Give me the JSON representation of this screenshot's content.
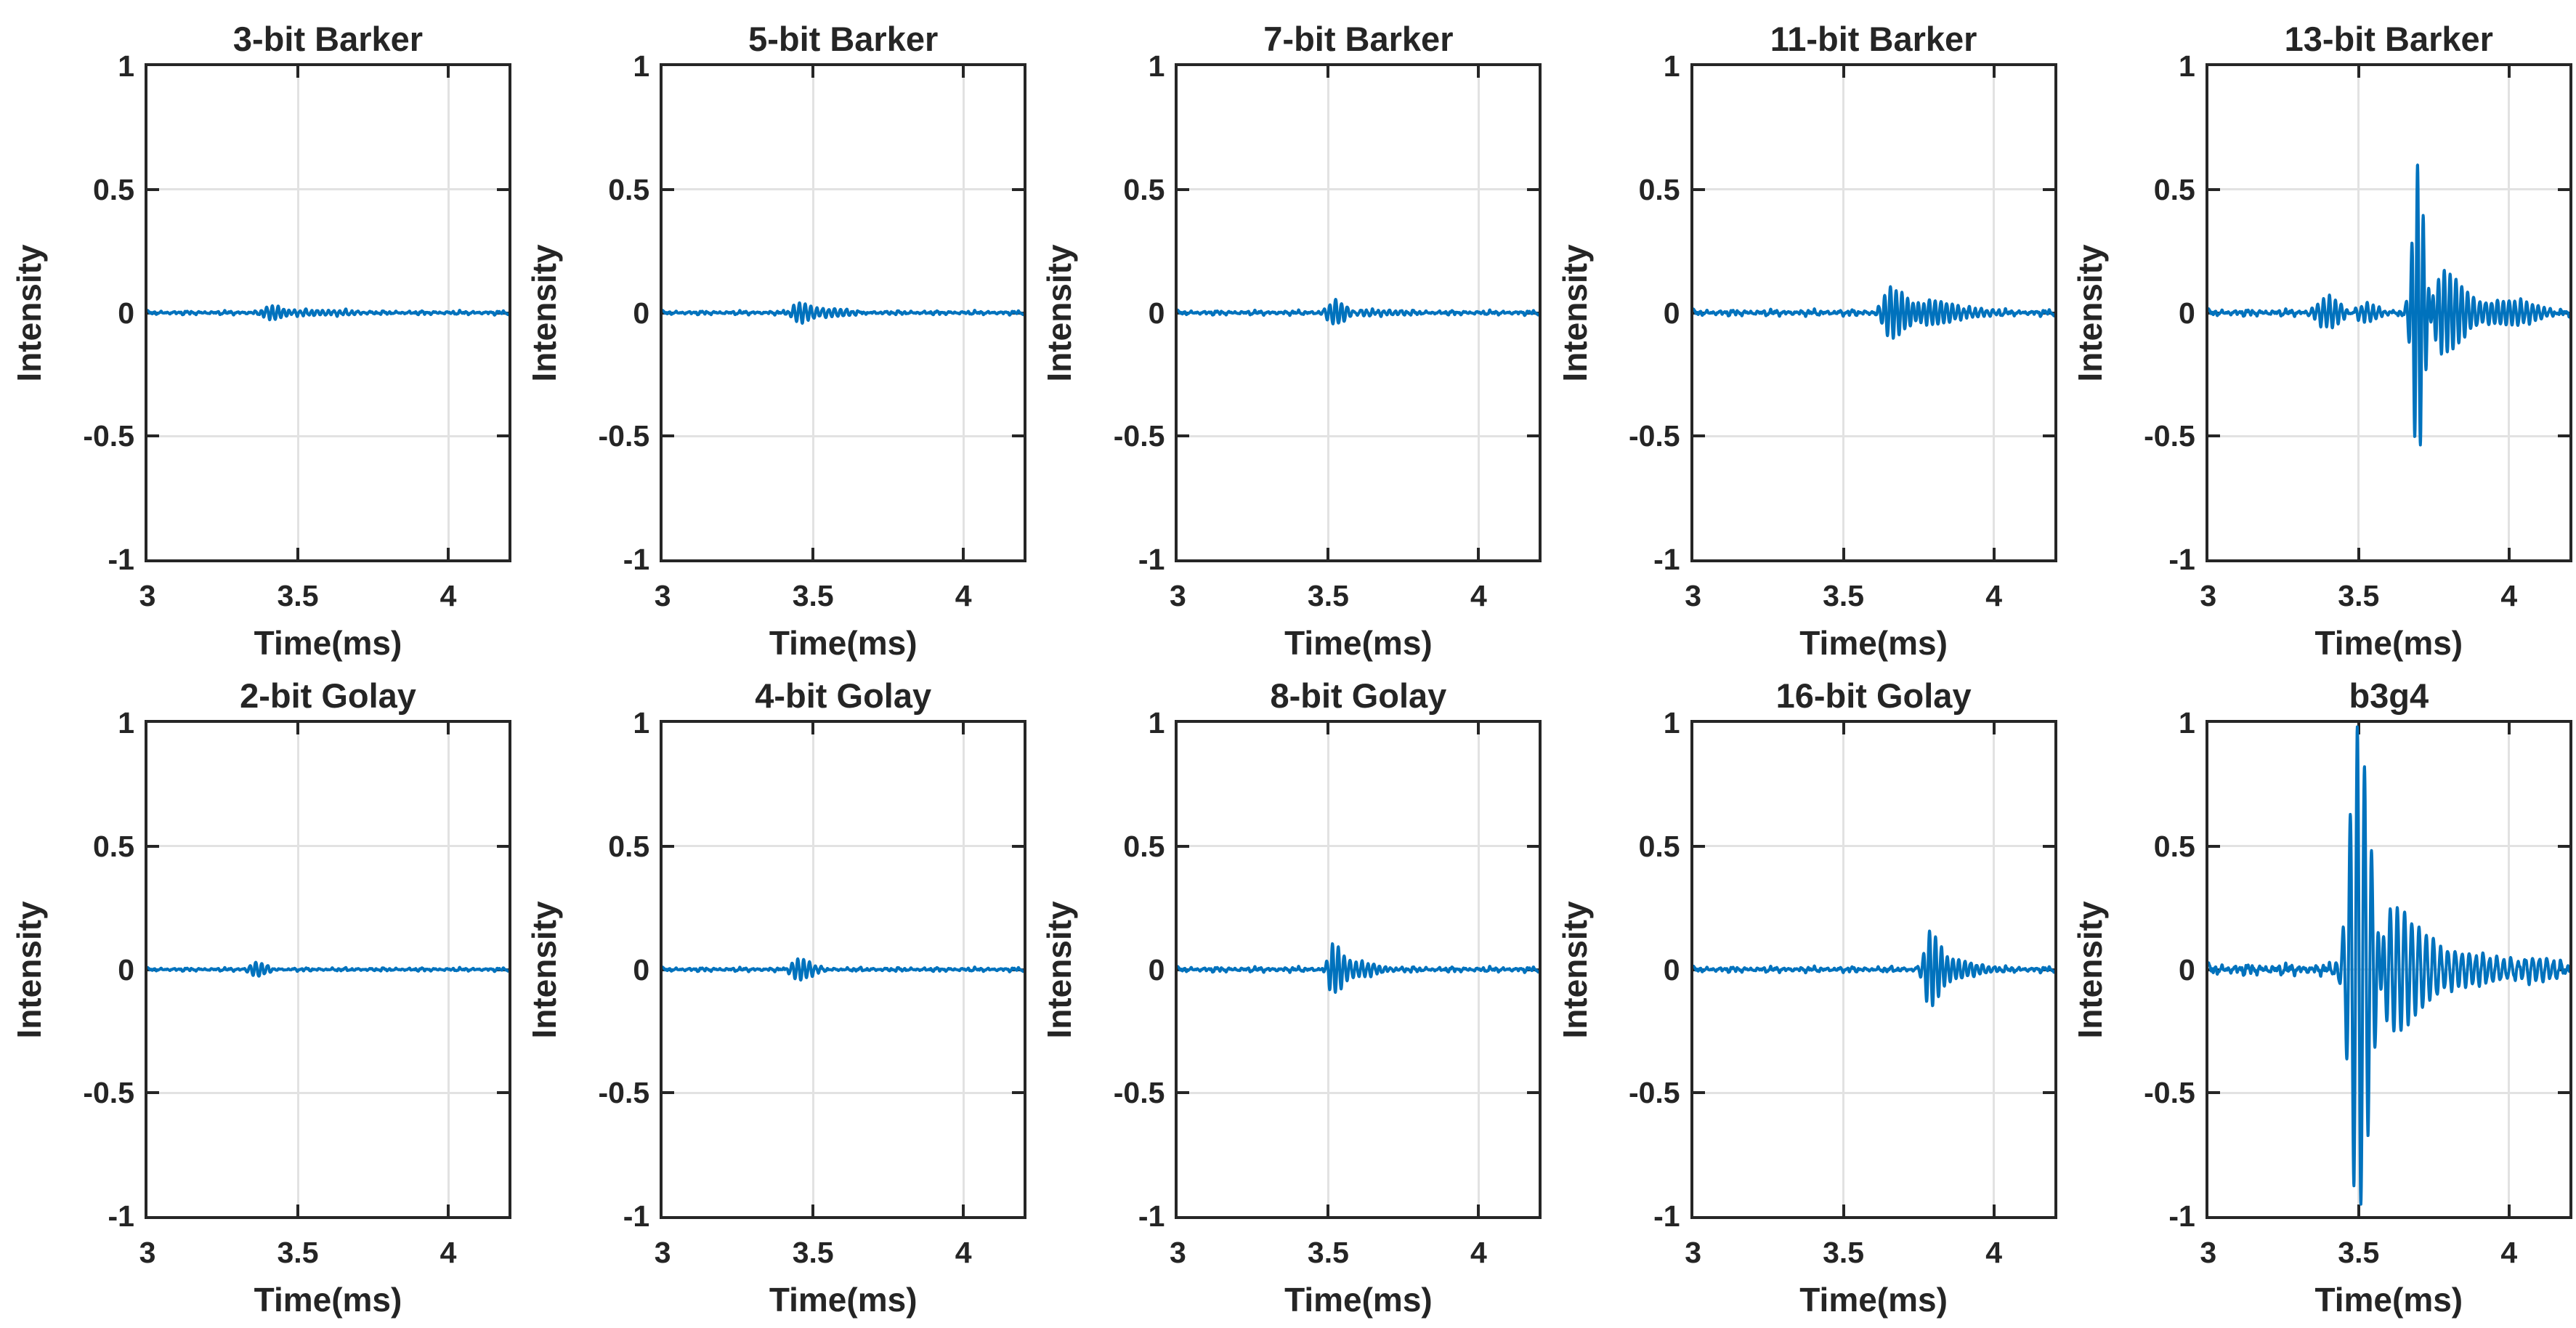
{
  "figure": {
    "background": "#ffffff",
    "text_color": "#252525",
    "axis_color": "#262626",
    "grid_color": "#e2e2e2",
    "line_color": "#0072bd",
    "rows": 2,
    "cols": 5,
    "xlabel": "Time(ms)",
    "ylabel": "Intensity",
    "xticks": [
      "3",
      "3.5",
      "4"
    ],
    "yticks": [
      "1",
      "0.5",
      "0",
      "-0.5",
      "-1"
    ]
  },
  "chart_data": [
    {
      "type": "line",
      "title": "3-bit Barker",
      "xlabel": "Time(ms)",
      "ylabel": "Intensity",
      "x_range_ms": [
        3,
        4.2
      ],
      "ylim": [
        -1,
        1
      ],
      "xticks": [
        3,
        3.5,
        4
      ],
      "yticks": [
        -1,
        -0.5,
        0,
        0.5,
        1
      ],
      "grid": true,
      "line_color": "#0072bd",
      "carrier_freq_cycles_per_ms": 52,
      "noise_amp": 0.007,
      "burst_center_ms": 3.42,
      "approx_peak": 0.03,
      "approx_min": -0.03,
      "bursts": [
        {
          "c": 3.415,
          "wl": 0.035,
          "wr": 0.05,
          "a": 0.032,
          "ph": 1.57
        },
        {
          "c": 3.56,
          "wl": 0.08,
          "wr": 0.12,
          "a": 0.012,
          "ph": 0.4
        }
      ]
    },
    {
      "type": "line",
      "title": "5-bit Barker",
      "xlabel": "Time(ms)",
      "ylabel": "Intensity",
      "x_range_ms": [
        3,
        4.2
      ],
      "ylim": [
        -1,
        1
      ],
      "xticks": [
        3,
        3.5,
        4
      ],
      "yticks": [
        -1,
        -0.5,
        0,
        0.5,
        1
      ],
      "grid": true,
      "line_color": "#0072bd",
      "carrier_freq_cycles_per_ms": 52,
      "noise_amp": 0.007,
      "burst_center_ms": 3.46,
      "approx_peak": 0.04,
      "approx_min": -0.04,
      "bursts": [
        {
          "c": 3.455,
          "wl": 0.032,
          "wr": 0.05,
          "a": 0.042,
          "ph": 1.57
        },
        {
          "c": 3.57,
          "wl": 0.07,
          "wr": 0.11,
          "a": 0.013,
          "ph": 0.9
        }
      ]
    },
    {
      "type": "line",
      "title": "7-bit Barker",
      "xlabel": "Time(ms)",
      "ylabel": "Intensity",
      "x_range_ms": [
        3,
        4.2
      ],
      "ylim": [
        -1,
        1
      ],
      "xticks": [
        3,
        3.5,
        4
      ],
      "yticks": [
        -1,
        -0.5,
        0,
        0.5,
        1
      ],
      "grid": true,
      "line_color": "#0072bd",
      "carrier_freq_cycles_per_ms": 52,
      "noise_amp": 0.008,
      "burst_center_ms": 3.53,
      "approx_peak": 0.05,
      "approx_min": -0.05,
      "bursts": [
        {
          "c": 3.525,
          "wl": 0.03,
          "wr": 0.055,
          "a": 0.05,
          "ph": 1.57
        },
        {
          "c": 3.63,
          "wl": 0.06,
          "wr": 0.1,
          "a": 0.016,
          "ph": 2.1
        }
      ]
    },
    {
      "type": "line",
      "title": "11-bit Barker",
      "xlabel": "Time(ms)",
      "ylabel": "Intensity",
      "x_range_ms": [
        3,
        4.2
      ],
      "ylim": [
        -1,
        1
      ],
      "xticks": [
        3,
        3.5,
        4
      ],
      "yticks": [
        -1,
        -0.5,
        0,
        0.5,
        1
      ],
      "grid": true,
      "line_color": "#0072bd",
      "carrier_freq_cycles_per_ms": 52,
      "noise_amp": 0.011,
      "burst_center_ms": 3.66,
      "approx_peak": 0.1,
      "approx_min": -0.11,
      "bursts": [
        {
          "c": 3.655,
          "wl": 0.03,
          "wr": 0.09,
          "a": 0.098,
          "ph": 1.57
        },
        {
          "c": 3.8,
          "wl": 0.09,
          "wr": 0.14,
          "a": 0.045,
          "ph": 0.6
        }
      ]
    },
    {
      "type": "line",
      "title": "13-bit Barker",
      "xlabel": "Time(ms)",
      "ylabel": "Intensity",
      "x_range_ms": [
        3,
        4.2
      ],
      "ylim": [
        -1,
        1
      ],
      "xticks": [
        3,
        3.5,
        4
      ],
      "yticks": [
        -1,
        -0.5,
        0,
        0.5,
        1
      ],
      "grid": true,
      "line_color": "#0072bd",
      "carrier_freq_cycles_per_ms": 52,
      "noise_amp": 0.012,
      "burst_center_ms": 3.7,
      "approx_peak": 0.58,
      "approx_min": -0.6,
      "bursts": [
        {
          "c": 3.4,
          "wl": 0.05,
          "wr": 0.06,
          "a": 0.055,
          "ph": 0.8
        },
        {
          "c": 3.53,
          "wl": 0.05,
          "wr": 0.06,
          "a": 0.03,
          "ph": 2.3
        },
        {
          "c": 3.695,
          "wl": 0.022,
          "wr": 0.03,
          "a": 0.6,
          "ph": 1.57
        },
        {
          "c": 3.78,
          "wl": 0.04,
          "wr": 0.1,
          "a": 0.16,
          "ph": 0.3
        },
        {
          "c": 3.96,
          "wl": 0.1,
          "wr": 0.17,
          "a": 0.05,
          "ph": 1.1
        }
      ]
    },
    {
      "type": "line",
      "title": "2-bit Golay",
      "xlabel": "Time(ms)",
      "ylabel": "Intensity",
      "x_range_ms": [
        3,
        4.2
      ],
      "ylim": [
        -1,
        1
      ],
      "xticks": [
        3,
        3.5,
        4
      ],
      "yticks": [
        -1,
        -0.5,
        0,
        0.5,
        1
      ],
      "grid": true,
      "line_color": "#0072bd",
      "carrier_freq_cycles_per_ms": 52,
      "noise_amp": 0.006,
      "burst_center_ms": 3.36,
      "approx_peak": 0.025,
      "approx_min": -0.025,
      "bursts": [
        {
          "c": 3.36,
          "wl": 0.025,
          "wr": 0.05,
          "a": 0.026,
          "ph": 1.57
        }
      ]
    },
    {
      "type": "line",
      "title": "4-bit Golay",
      "xlabel": "Time(ms)",
      "ylabel": "Intensity",
      "x_range_ms": [
        3,
        4.2
      ],
      "ylim": [
        -1,
        1
      ],
      "xticks": [
        3,
        3.5,
        4
      ],
      "yticks": [
        -1,
        -0.5,
        0,
        0.5,
        1
      ],
      "grid": true,
      "line_color": "#0072bd",
      "carrier_freq_cycles_per_ms": 52,
      "noise_amp": 0.007,
      "burst_center_ms": 3.45,
      "approx_peak": 0.04,
      "approx_min": -0.04,
      "bursts": [
        {
          "c": 3.45,
          "wl": 0.03,
          "wr": 0.055,
          "a": 0.042,
          "ph": 1.57
        }
      ]
    },
    {
      "type": "line",
      "title": "8-bit Golay",
      "xlabel": "Time(ms)",
      "ylabel": "Intensity",
      "x_range_ms": [
        3,
        4.2
      ],
      "ylim": [
        -1,
        1
      ],
      "xticks": [
        3,
        3.5,
        4
      ],
      "yticks": [
        -1,
        -0.5,
        0,
        0.5,
        1
      ],
      "grid": true,
      "line_color": "#0072bd",
      "carrier_freq_cycles_per_ms": 52,
      "noise_amp": 0.009,
      "burst_center_ms": 3.52,
      "approx_peak": 0.09,
      "approx_min": -0.1,
      "bursts": [
        {
          "c": 3.515,
          "wl": 0.02,
          "wr": 0.045,
          "a": 0.1,
          "ph": 1.57
        },
        {
          "c": 3.61,
          "wl": 0.05,
          "wr": 0.1,
          "a": 0.026,
          "ph": 0.7
        }
      ]
    },
    {
      "type": "line",
      "title": "16-bit Golay",
      "xlabel": "Time(ms)",
      "ylabel": "Intensity",
      "x_range_ms": [
        3,
        4.2
      ],
      "ylim": [
        -1,
        1
      ],
      "xticks": [
        3,
        3.5,
        4
      ],
      "yticks": [
        -1,
        -0.5,
        0,
        0.5,
        1
      ],
      "grid": true,
      "line_color": "#0072bd",
      "carrier_freq_cycles_per_ms": 50,
      "noise_amp": 0.01,
      "burst_center_ms": 3.79,
      "approx_peak": 0.14,
      "approx_min": -0.16,
      "bursts": [
        {
          "c": 3.785,
          "wl": 0.022,
          "wr": 0.05,
          "a": 0.145,
          "ph": 1.57
        },
        {
          "c": 3.88,
          "wl": 0.05,
          "wr": 0.1,
          "a": 0.04,
          "ph": 1.0
        }
      ]
    },
    {
      "type": "line",
      "title": "b3g4",
      "xlabel": "Time(ms)",
      "ylabel": "Intensity",
      "x_range_ms": [
        3,
        4.2
      ],
      "ylim": [
        -1,
        1
      ],
      "xticks": [
        3,
        3.5,
        4
      ],
      "yticks": [
        -1,
        -0.5,
        0,
        0.5,
        1
      ],
      "grid": true,
      "line_color": "#0072bd",
      "carrier_freq_cycles_per_ms": 42,
      "noise_amp": 0.02,
      "burst_center_ms": 3.5,
      "approx_peak": 1.0,
      "approx_min": -0.92,
      "bursts": [
        {
          "c": 3.495,
          "wl": 0.035,
          "wr": 0.06,
          "a": 0.99,
          "ph": 1.57
        },
        {
          "c": 3.6,
          "wl": 0.04,
          "wr": 0.1,
          "a": 0.28,
          "ph": 0.5
        },
        {
          "c": 3.75,
          "wl": 0.08,
          "wr": 0.15,
          "a": 0.09,
          "ph": 1.9
        },
        {
          "c": 4.0,
          "wl": 0.15,
          "wr": 0.25,
          "a": 0.045,
          "ph": 0.2
        }
      ]
    }
  ]
}
